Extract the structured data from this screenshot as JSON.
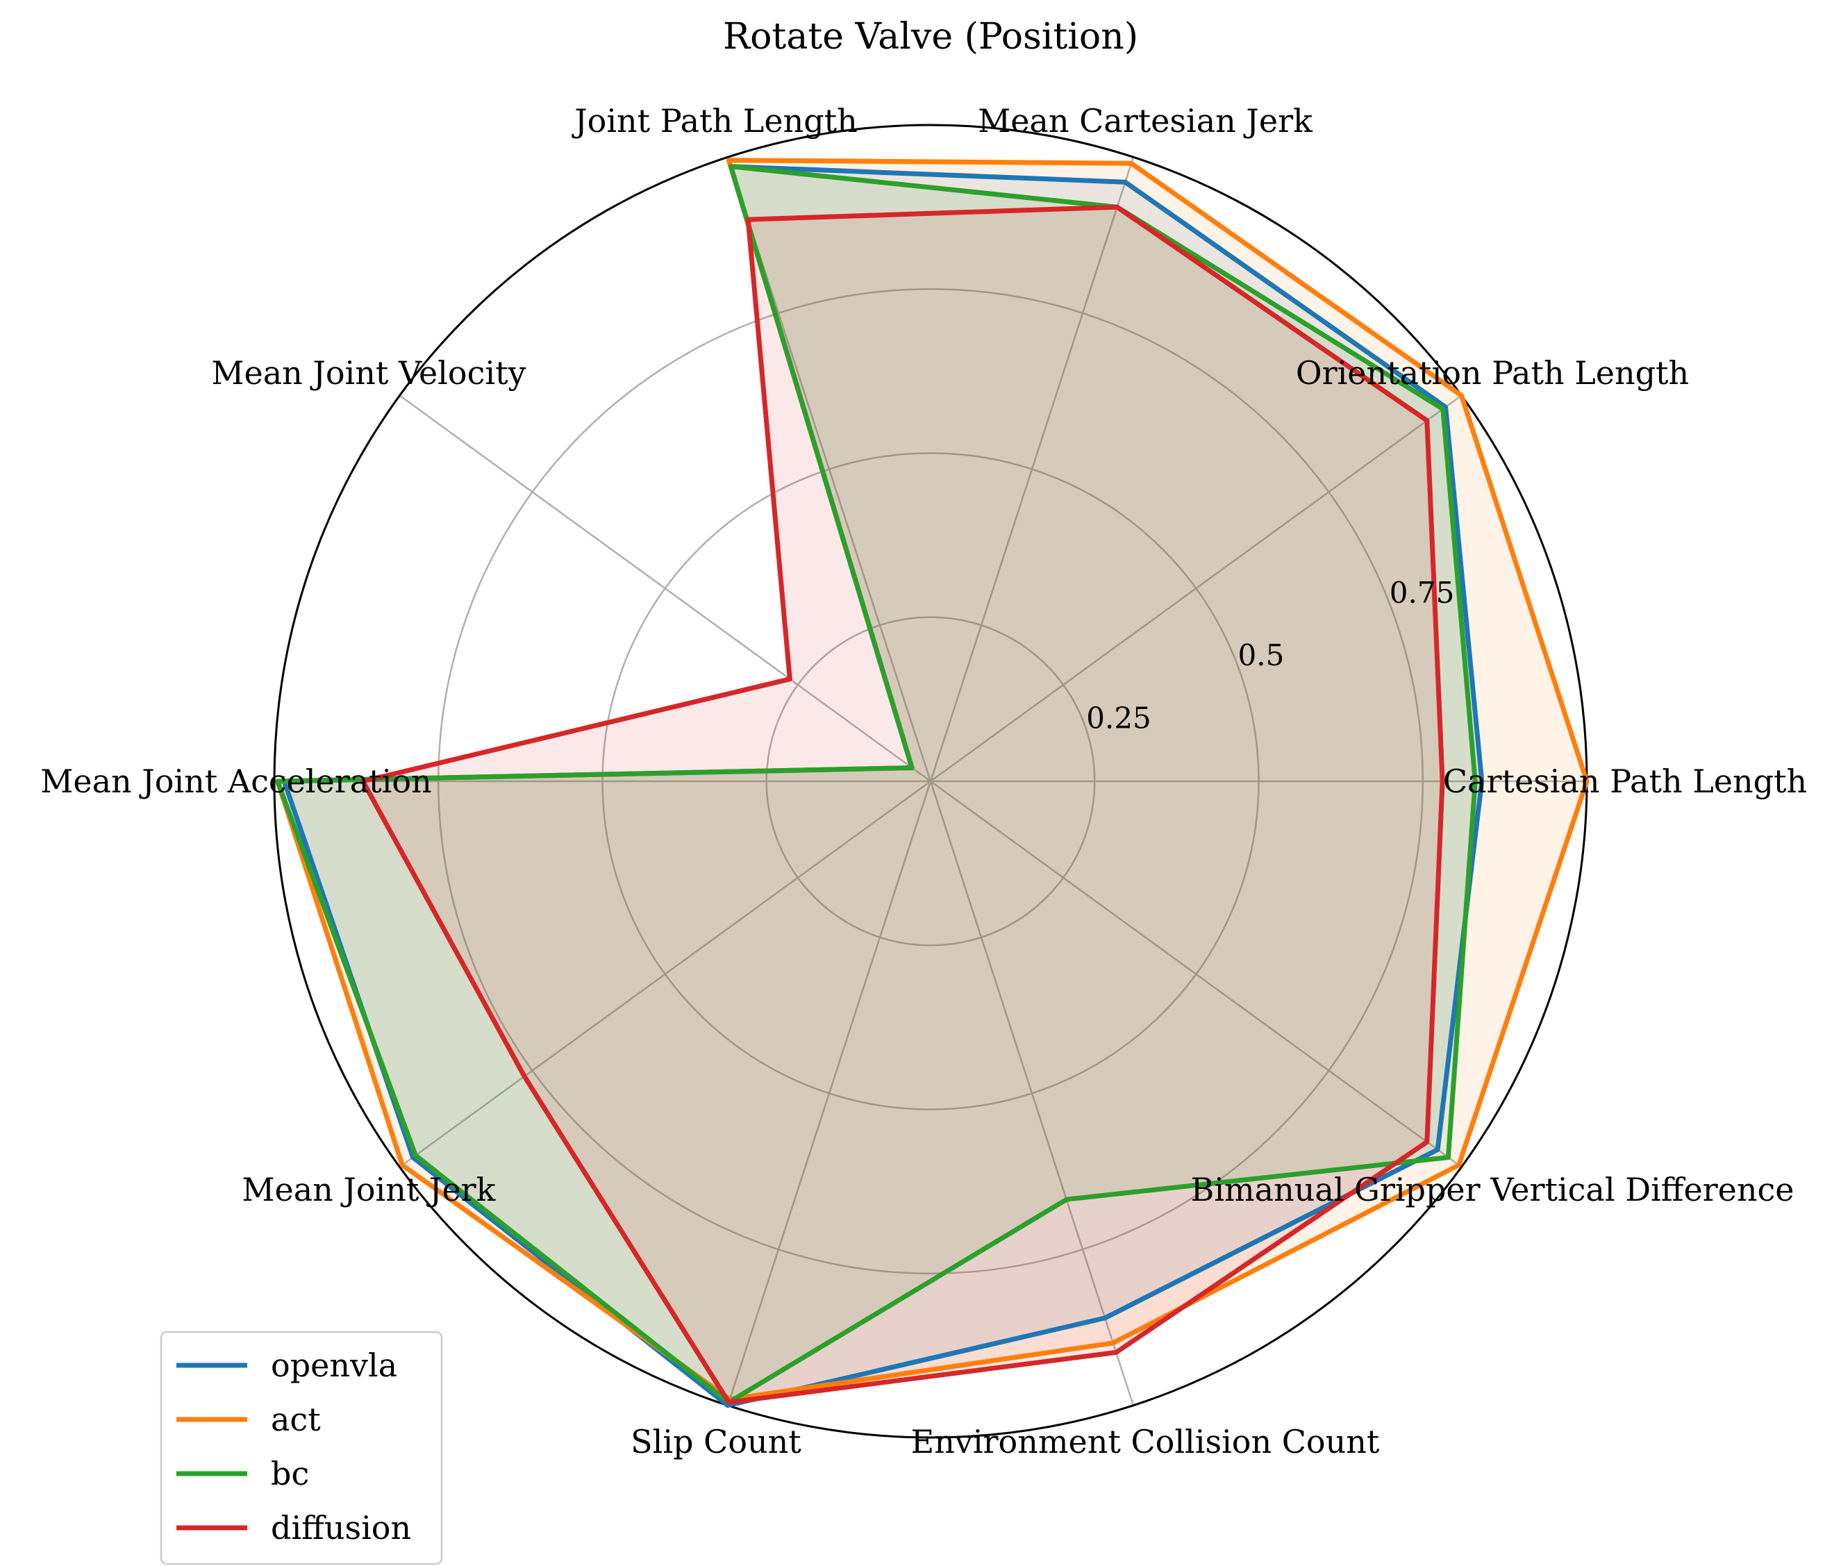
{
  "chart_data": {
    "type": "radar",
    "title": "Rotate Valve (Position)",
    "axes": [
      "Cartesian Path Length",
      "Orientation Path Length",
      "Mean Cartesian Jerk",
      "Joint Path Length",
      "Mean Joint Velocity",
      "Mean Joint Acceleration",
      "Mean Joint Jerk",
      "Slip Count",
      "Environment Collision Count",
      "Bimanual Gripper Vertical Difference"
    ],
    "r_ticks": [
      0.25,
      0.5,
      0.75
    ],
    "r_tick_labels": [
      "0.25",
      "0.5",
      "0.75"
    ],
    "rlim": [
      0,
      1
    ],
    "grid": true,
    "legend_position": "lower-left",
    "series": [
      {
        "name": "openvla",
        "color": "#1f77b4",
        "values": [
          0.84,
          0.97,
          0.96,
          0.985,
          0.035,
          0.985,
          0.975,
          1.0,
          0.86,
          0.955
        ]
      },
      {
        "name": "act",
        "color": "#ff7f0e",
        "values": [
          1.0,
          1.0,
          0.99,
          0.995,
          0.035,
          0.995,
          0.995,
          0.99,
          0.9,
          0.995
        ]
      },
      {
        "name": "bc",
        "color": "#2ca02c",
        "values": [
          0.83,
          0.965,
          0.92,
          0.985,
          0.035,
          0.995,
          0.97,
          0.995,
          0.67,
          0.975
        ]
      },
      {
        "name": "diffusion",
        "color": "#d62728",
        "values": [
          0.78,
          0.935,
          0.92,
          0.9,
          0.265,
          0.865,
          0.765,
          0.995,
          0.915,
          0.935
        ]
      }
    ]
  }
}
